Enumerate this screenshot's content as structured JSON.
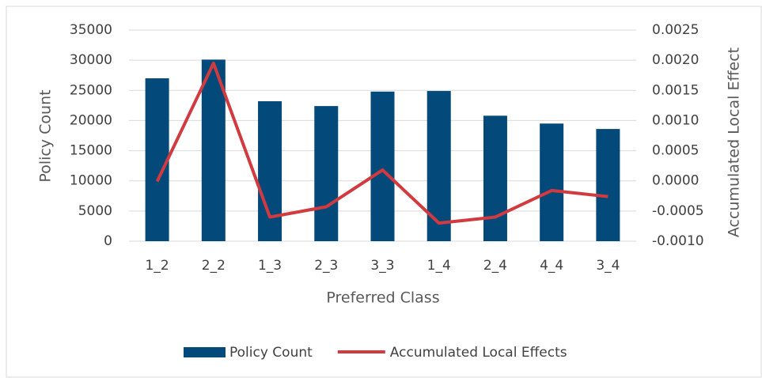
{
  "chart_data": {
    "type": "bar-line",
    "x_label": "Preferred Class",
    "y_label": "Policy Count",
    "y2_label": "Accumulated Local Effect",
    "categories": [
      "1_2",
      "2_2",
      "1_3",
      "2_3",
      "3_3",
      "1_4",
      "2_4",
      "4_4",
      "3_4"
    ],
    "series": [
      {
        "name": "Policy Count",
        "type": "bar",
        "color": "#03497a",
        "values": [
          27000,
          30100,
          23200,
          22400,
          24800,
          24900,
          20800,
          19500,
          18600
        ]
      },
      {
        "name": "Accumulated Local Effects",
        "type": "line",
        "axis": "y2",
        "color": "#d13a3f",
        "values": [
          -1e-05,
          0.00195,
          -0.0006,
          -0.00043,
          0.00018,
          -0.0007,
          -0.0006,
          -0.00016,
          -0.00026
        ]
      }
    ],
    "ylim": [
      0,
      35000
    ],
    "yticks": [
      0,
      5000,
      10000,
      15000,
      20000,
      25000,
      30000,
      35000
    ],
    "y2lim": [
      -0.001,
      0.0025
    ],
    "y2ticks": [
      {
        "value": -0.001,
        "label": "-0.0010"
      },
      {
        "value": -0.0005,
        "label": "-0.0005"
      },
      {
        "value": 0,
        "label": "0.0000"
      },
      {
        "value": 0.0005,
        "label": "0.0005"
      },
      {
        "value": 0.001,
        "label": "0.0010"
      },
      {
        "value": 0.0015,
        "label": "0.0015"
      },
      {
        "value": 0.002,
        "label": "0.0020"
      },
      {
        "value": 0.0025,
        "label": "0.0025"
      }
    ],
    "grid": true,
    "legend": "bottom"
  }
}
